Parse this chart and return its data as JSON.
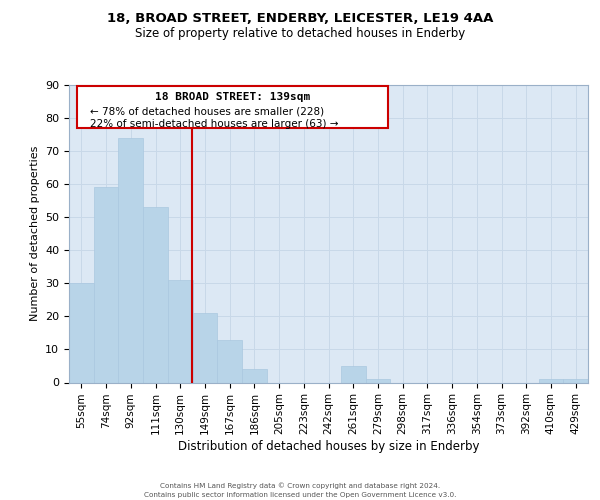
{
  "title": "18, BROAD STREET, ENDERBY, LEICESTER, LE19 4AA",
  "subtitle": "Size of property relative to detached houses in Enderby",
  "xlabel": "Distribution of detached houses by size in Enderby",
  "ylabel": "Number of detached properties",
  "bar_color": "#b8d4e8",
  "bar_edge_color": "#aac8e0",
  "categories": [
    "55sqm",
    "74sqm",
    "92sqm",
    "111sqm",
    "130sqm",
    "149sqm",
    "167sqm",
    "186sqm",
    "205sqm",
    "223sqm",
    "242sqm",
    "261sqm",
    "279sqm",
    "298sqm",
    "317sqm",
    "336sqm",
    "354sqm",
    "373sqm",
    "392sqm",
    "410sqm",
    "429sqm"
  ],
  "values": [
    30,
    59,
    74,
    53,
    31,
    21,
    13,
    4,
    0,
    0,
    0,
    5,
    1,
    0,
    0,
    0,
    0,
    0,
    0,
    1,
    1
  ],
  "ylim": [
    0,
    90
  ],
  "yticks": [
    0,
    10,
    20,
    30,
    40,
    50,
    60,
    70,
    80,
    90
  ],
  "property_label": "18 BROAD STREET: 139sqm",
  "pct_smaller": 78,
  "n_smaller": 228,
  "pct_larger": 22,
  "n_larger": 63,
  "grid_color": "#c8d8e8",
  "background_color": "#dce8f4",
  "footer_line1": "Contains HM Land Registry data © Crown copyright and database right 2024.",
  "footer_line2": "Contains public sector information licensed under the Open Government Licence v3.0.",
  "property_line_x": 4.47
}
